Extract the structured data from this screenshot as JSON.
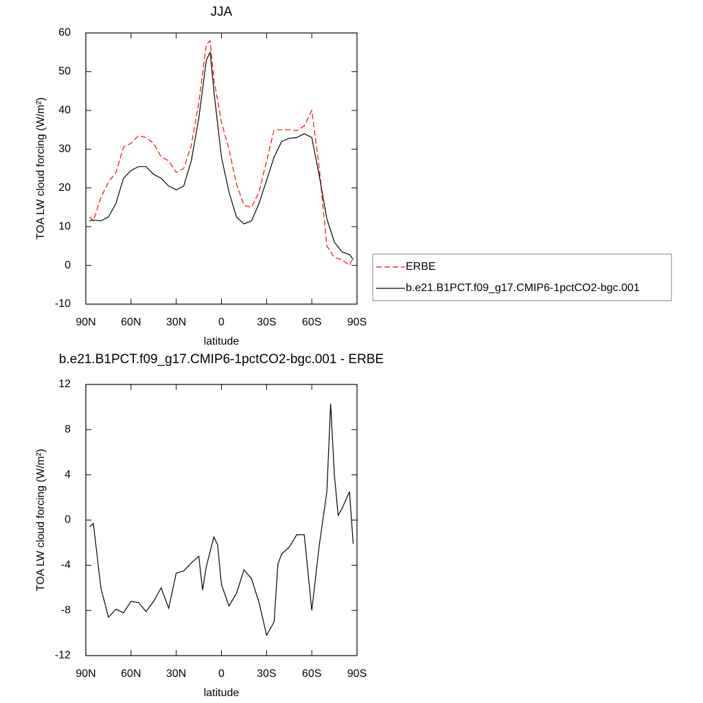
{
  "chart_data": [
    {
      "type": "line",
      "title": "JJA",
      "x_label": "latitude",
      "y_label": "TOA LW cloud forcing (W/m²)",
      "x": [
        87.5,
        85,
        80,
        75,
        70,
        65,
        60,
        55,
        50,
        45,
        40,
        35,
        30,
        25,
        20,
        15,
        10,
        7.5,
        5,
        0,
        -5,
        -10,
        -15,
        -20,
        -25,
        -30,
        -35,
        -40,
        -45,
        -50,
        -55,
        -60,
        -65,
        -70,
        -75,
        -80,
        -85,
        -87.5
      ],
      "series": [
        {
          "name": "ERBE",
          "color": "#ff0000",
          "dash": true,
          "values": [
            12.5,
            11.5,
            17.5,
            21.5,
            24,
            30.5,
            31.5,
            33.5,
            33,
            31.5,
            28,
            27,
            24,
            25,
            31,
            42,
            57,
            58,
            48,
            37,
            30,
            21,
            15.5,
            15,
            19,
            27,
            35,
            35,
            35,
            34.8,
            36,
            40,
            25,
            5,
            2,
            1.5,
            0,
            2
          ]
        },
        {
          "name": "b.e21.B1PCT.f09_g17.CMIP6-1pctCO2-bgc.001",
          "color": "#000000",
          "dash": false,
          "values": [
            11.5,
            11.7,
            11.5,
            12.5,
            16,
            22.5,
            24.5,
            25.5,
            25.5,
            23.5,
            22.5,
            20.5,
            19.5,
            20.5,
            27,
            38,
            53,
            55,
            45,
            28,
            19,
            12.5,
            10.7,
            11.5,
            16,
            22,
            28,
            32,
            32.8,
            33,
            34,
            33,
            23,
            12,
            6,
            3.5,
            2.8,
            1.5
          ]
        }
      ],
      "xlim": [
        90,
        -90
      ],
      "xticks": [
        {
          "value": 90,
          "label": "90N"
        },
        {
          "value": 60,
          "label": "60N"
        },
        {
          "value": 30,
          "label": "30N"
        },
        0,
        {
          "value": -30,
          "label": "30S"
        },
        {
          "value": -60,
          "label": "60S"
        },
        {
          "value": -90,
          "label": "90S"
        }
      ],
      "ylim": [
        -10,
        60
      ],
      "yticks": [
        -10,
        0,
        10,
        20,
        30,
        40,
        50,
        60
      ],
      "legend": "right"
    },
    {
      "type": "line",
      "title": "b.e21.B1PCT.f09_g17.CMIP6-1pctCO2-bgc.001 - ERBE",
      "x_label": "latitude",
      "y_label": "TOA LW cloud forcing (W/m²)",
      "x": [
        87.5,
        85,
        80,
        75,
        70,
        65,
        60,
        55,
        50,
        45,
        40,
        35,
        30,
        25,
        20,
        15,
        12.5,
        10,
        5,
        2.5,
        0,
        -5,
        -10,
        -15,
        -20,
        -25,
        -30,
        -35,
        -37.5,
        -40,
        -45,
        -50,
        -55,
        -60,
        -65,
        -70,
        -72.5,
        -75,
        -77.5,
        -80,
        -85,
        -87.5
      ],
      "values": [
        -0.6,
        -0.3,
        -6,
        -8.6,
        -7.9,
        -8.2,
        -7.2,
        -7.3,
        -8.1,
        -7.2,
        -6,
        -7.8,
        -4.7,
        -4.5,
        -3.8,
        -3.2,
        -6.2,
        -4.1,
        -1.5,
        -2.2,
        -5.7,
        -7.6,
        -6.5,
        -4.4,
        -5.2,
        -7.3,
        -10.2,
        -9,
        -3.9,
        -3,
        -2.4,
        -1.3,
        -1.3,
        -8,
        -2.2,
        2.5,
        10.3,
        4,
        0.4,
        1,
        2.5,
        -2.1
      ],
      "color": "#000000",
      "xlim": [
        90,
        -90
      ],
      "xticks": [
        {
          "value": 90,
          "label": "90N"
        },
        {
          "value": 60,
          "label": "60N"
        },
        {
          "value": 30,
          "label": "30N"
        },
        0,
        {
          "value": -30,
          "label": "30S"
        },
        {
          "value": -60,
          "label": "60S"
        },
        {
          "value": -90,
          "label": "90S"
        }
      ],
      "ylim": [
        -12,
        12
      ],
      "yticks": [
        -12,
        -8,
        -4,
        0,
        4,
        8,
        12
      ]
    }
  ]
}
